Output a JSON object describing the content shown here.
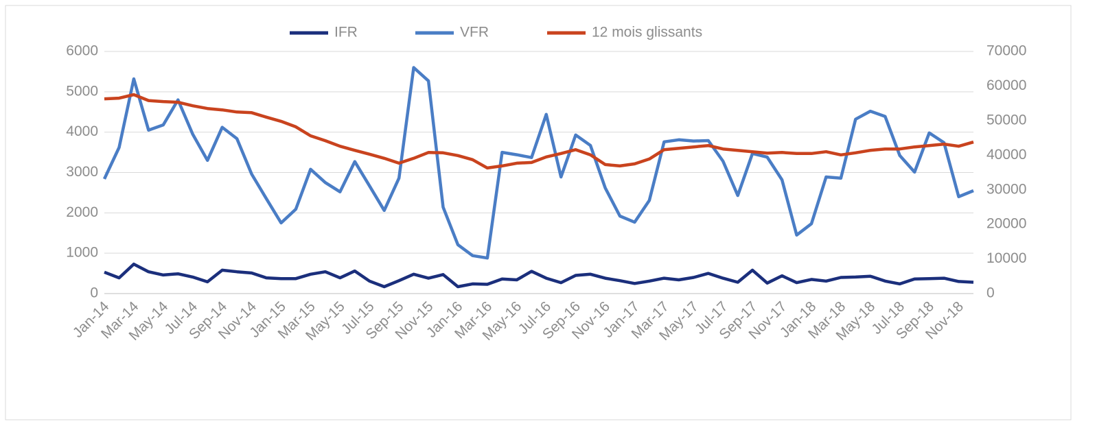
{
  "chart_data": {
    "type": "line",
    "categories": [
      "Jan-14",
      null,
      "Mar-14",
      null,
      "May-14",
      null,
      "Jul-14",
      null,
      "Sep-14",
      null,
      "Nov-14",
      null,
      "Jan-15",
      null,
      "Mar-15",
      null,
      "May-15",
      null,
      "Jul-15",
      null,
      "Sep-15",
      null,
      "Nov-15",
      null,
      "Jan-16",
      null,
      "Mar-16",
      null,
      "May-16",
      null,
      "Jul-16",
      null,
      "Sep-16",
      null,
      "Nov-16",
      null,
      "Jan-17",
      null,
      "Mar-17",
      null,
      "May-17",
      null,
      "Jul-17",
      null,
      "Sep-17",
      null,
      "Nov-17",
      null,
      "Jan-18",
      null,
      "Mar-18",
      null,
      "May-18",
      null,
      "Jul-18",
      null,
      "Sep-18",
      null,
      "Nov-18",
      null
    ],
    "series": [
      {
        "name": "IFR",
        "color": "#1b2f7c",
        "values": [
          530,
          390,
          730,
          540,
          460,
          490,
          410,
          290,
          580,
          540,
          510,
          390,
          370,
          370,
          480,
          540,
          390,
          560,
          310,
          170,
          320,
          480,
          380,
          470,
          170,
          240,
          230,
          360,
          340,
          550,
          380,
          270,
          450,
          480,
          380,
          320,
          250,
          310,
          380,
          340,
          400,
          500,
          380,
          280,
          580,
          260,
          440,
          270,
          350,
          310,
          400,
          410,
          430,
          310,
          240,
          360,
          370,
          380,
          300,
          280
        ]
      },
      {
        "name": "VFR",
        "color": "#4a7dc5",
        "values": [
          2840,
          3620,
          5320,
          4050,
          4180,
          4800,
          3950,
          3300,
          4120,
          3840,
          2960,
          2350,
          1750,
          2090,
          3080,
          2750,
          2520,
          3270,
          2670,
          2060,
          2860,
          5600,
          5270,
          2140,
          1210,
          940,
          880,
          3500,
          3440,
          3370,
          4440,
          2890,
          3930,
          3670,
          2620,
          1920,
          1770,
          2310,
          3760,
          3810,
          3780,
          3790,
          3280,
          2430,
          3470,
          3380,
          2820,
          1450,
          1730,
          2890,
          2860,
          4320,
          4520,
          4390,
          3420,
          3010,
          3980,
          3740,
          2400,
          2550
        ]
      },
      {
        "name": "12 mois glissants",
        "color": "#c9431e",
        "axis": "y2",
        "values": [
          56300,
          56500,
          57500,
          55800,
          55500,
          55300,
          54300,
          53500,
          53100,
          52500,
          52300,
          51000,
          49800,
          48200,
          45600,
          44200,
          42600,
          41400,
          40300,
          39100,
          37700,
          39100,
          40800,
          40700,
          39900,
          38700,
          36300,
          36900,
          37700,
          37900,
          39500,
          40500,
          41600,
          40100,
          37300,
          36900,
          37500,
          38900,
          41600,
          42000,
          42400,
          42800,
          41800,
          41400,
          41000,
          40600,
          40800,
          40500,
          40500,
          41000,
          40100,
          40700,
          41400,
          41800,
          41800,
          42400,
          42800,
          43200,
          42600,
          43800
        ]
      }
    ],
    "ylim": [
      0,
      6000
    ],
    "yticks": [
      0,
      1000,
      2000,
      3000,
      4000,
      5000,
      6000
    ],
    "y2lim": [
      0,
      70000
    ],
    "y2ticks": [
      0,
      10000,
      20000,
      30000,
      40000,
      50000,
      60000,
      70000
    ],
    "grid": true,
    "legend": "top"
  }
}
